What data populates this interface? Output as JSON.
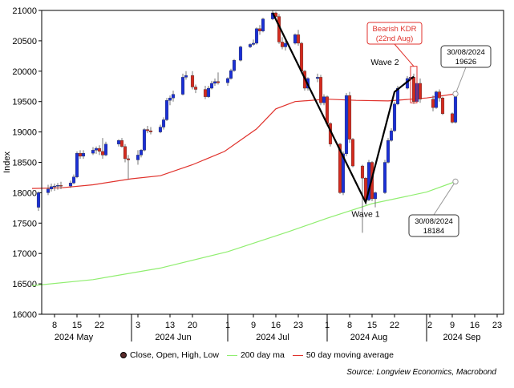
{
  "chart_data": {
    "type": "candlestick",
    "ylabel": "Index",
    "ylim": [
      16000,
      21000
    ],
    "yticks": [
      16000,
      16500,
      17000,
      17500,
      18000,
      18500,
      19000,
      19500,
      20000,
      20500,
      21000
    ],
    "x_range": [
      "2024-05-04",
      "2024-09-25"
    ],
    "x_day_ticks": [
      {
        "date": "2024-05-08",
        "label": "8"
      },
      {
        "date": "2024-05-15",
        "label": "15"
      },
      {
        "date": "2024-05-22",
        "label": "22"
      },
      {
        "date": "2024-06-03",
        "label": "3"
      },
      {
        "date": "2024-06-13",
        "label": "13"
      },
      {
        "date": "2024-06-20",
        "label": "20"
      },
      {
        "date": "2024-07-01",
        "label": "1"
      },
      {
        "date": "2024-07-09",
        "label": "9"
      },
      {
        "date": "2024-07-16",
        "label": "16"
      },
      {
        "date": "2024-07-23",
        "label": "23"
      },
      {
        "date": "2024-08-01",
        "label": "1"
      },
      {
        "date": "2024-08-08",
        "label": "8"
      },
      {
        "date": "2024-08-15",
        "label": "15"
      },
      {
        "date": "2024-08-22",
        "label": "22"
      },
      {
        "date": "2024-09-02",
        "label": "2"
      },
      {
        "date": "2024-09-09",
        "label": "9"
      },
      {
        "date": "2024-09-16",
        "label": "16"
      },
      {
        "date": "2024-09-23",
        "label": "23"
      }
    ],
    "x_month_labels": [
      {
        "date": "2024-05-14",
        "label": "2024 May"
      },
      {
        "date": "2024-06-14",
        "label": "2024 Jun"
      },
      {
        "date": "2024-07-15",
        "label": "2024 Jul"
      },
      {
        "date": "2024-08-14",
        "label": "2024 Aug"
      },
      {
        "date": "2024-09-12",
        "label": "2024 Sep"
      }
    ],
    "month_boundaries": [
      "2024-06-01",
      "2024-07-01",
      "2024-08-01",
      "2024-09-01"
    ],
    "candles": [
      {
        "date": "2024-05-03",
        "open": 17760,
        "high": 18020,
        "low": 17700,
        "close": 18000
      },
      {
        "date": "2024-05-06",
        "open": 18000,
        "high": 18130,
        "low": 17960,
        "close": 18060
      },
      {
        "date": "2024-05-07",
        "open": 18060,
        "high": 18150,
        "low": 18020,
        "close": 18100
      },
      {
        "date": "2024-05-08",
        "open": 18100,
        "high": 18150,
        "low": 18030,
        "close": 18110
      },
      {
        "date": "2024-05-09",
        "open": 18110,
        "high": 18160,
        "low": 18050,
        "close": 18120
      },
      {
        "date": "2024-05-10",
        "open": 18120,
        "high": 18180,
        "low": 18060,
        "close": 18110
      },
      {
        "date": "2024-05-13",
        "open": 18110,
        "high": 18200,
        "low": 18080,
        "close": 18160
      },
      {
        "date": "2024-05-14",
        "open": 18160,
        "high": 18300,
        "low": 18140,
        "close": 18260
      },
      {
        "date": "2024-05-15",
        "open": 18260,
        "high": 18680,
        "low": 18240,
        "close": 18650
      },
      {
        "date": "2024-05-16",
        "open": 18650,
        "high": 18700,
        "low": 18560,
        "close": 18600
      },
      {
        "date": "2024-05-17",
        "open": 18600,
        "high": 18700,
        "low": 18560,
        "close": 18650
      },
      {
        "date": "2024-05-20",
        "open": 18650,
        "high": 18750,
        "low": 18620,
        "close": 18700
      },
      {
        "date": "2024-05-21",
        "open": 18700,
        "high": 18760,
        "low": 18640,
        "close": 18730
      },
      {
        "date": "2024-05-22",
        "open": 18730,
        "high": 18780,
        "low": 18620,
        "close": 18680
      },
      {
        "date": "2024-05-23",
        "open": 18680,
        "high": 18900,
        "low": 18560,
        "close": 18620
      },
      {
        "date": "2024-05-24",
        "open": 18620,
        "high": 18840,
        "low": 18600,
        "close": 18800
      },
      {
        "date": "2024-05-28",
        "open": 18800,
        "high": 18880,
        "low": 18760,
        "close": 18860
      },
      {
        "date": "2024-05-29",
        "open": 18860,
        "high": 18900,
        "low": 18740,
        "close": 18760
      },
      {
        "date": "2024-05-30",
        "open": 18760,
        "high": 18800,
        "low": 18500,
        "close": 18560
      },
      {
        "date": "2024-05-31",
        "open": 18560,
        "high": 18620,
        "low": 18220,
        "close": 18540
      },
      {
        "date": "2024-06-03",
        "open": 18540,
        "high": 18700,
        "low": 18460,
        "close": 18620
      },
      {
        "date": "2024-06-04",
        "open": 18620,
        "high": 18720,
        "low": 18580,
        "close": 18700
      },
      {
        "date": "2024-06-05",
        "open": 18700,
        "high": 19060,
        "low": 18680,
        "close": 19040
      },
      {
        "date": "2024-06-06",
        "open": 19040,
        "high": 19100,
        "low": 18980,
        "close": 19020
      },
      {
        "date": "2024-06-07",
        "open": 19020,
        "high": 19080,
        "low": 18960,
        "close": 19000
      },
      {
        "date": "2024-06-10",
        "open": 19000,
        "high": 19120,
        "low": 18980,
        "close": 19080
      },
      {
        "date": "2024-06-11",
        "open": 19080,
        "high": 19240,
        "low": 19040,
        "close": 19200
      },
      {
        "date": "2024-06-12",
        "open": 19200,
        "high": 19560,
        "low": 19180,
        "close": 19520
      },
      {
        "date": "2024-06-13",
        "open": 19520,
        "high": 19600,
        "low": 19440,
        "close": 19560
      },
      {
        "date": "2024-06-14",
        "open": 19560,
        "high": 19680,
        "low": 19500,
        "close": 19620
      },
      {
        "date": "2024-06-17",
        "open": 19620,
        "high": 19960,
        "low": 19600,
        "close": 19900
      },
      {
        "date": "2024-06-18",
        "open": 19900,
        "high": 20000,
        "low": 19860,
        "close": 19930
      },
      {
        "date": "2024-06-20",
        "open": 19930,
        "high": 20000,
        "low": 19700,
        "close": 19740
      },
      {
        "date": "2024-06-21",
        "open": 19740,
        "high": 19780,
        "low": 19640,
        "close": 19700
      },
      {
        "date": "2024-06-24",
        "open": 19700,
        "high": 19760,
        "low": 19540,
        "close": 19580
      },
      {
        "date": "2024-06-25",
        "open": 19580,
        "high": 19760,
        "low": 19560,
        "close": 19720
      },
      {
        "date": "2024-06-26",
        "open": 19720,
        "high": 19840,
        "low": 19700,
        "close": 19800
      },
      {
        "date": "2024-06-27",
        "open": 19800,
        "high": 19880,
        "low": 19760,
        "close": 19830
      },
      {
        "date": "2024-06-28",
        "open": 19830,
        "high": 19980,
        "low": 19780,
        "close": 19810
      },
      {
        "date": "2024-07-01",
        "open": 19810,
        "high": 19900,
        "low": 19760,
        "close": 19880
      },
      {
        "date": "2024-07-02",
        "open": 19880,
        "high": 20040,
        "low": 19860,
        "close": 20010
      },
      {
        "date": "2024-07-03",
        "open": 20010,
        "high": 20200,
        "low": 19990,
        "close": 20180
      },
      {
        "date": "2024-07-05",
        "open": 20180,
        "high": 20420,
        "low": 20160,
        "close": 20400
      },
      {
        "date": "2024-07-08",
        "open": 20400,
        "high": 20460,
        "low": 20380,
        "close": 20440
      },
      {
        "date": "2024-07-09",
        "open": 20440,
        "high": 20520,
        "low": 20420,
        "close": 20460
      },
      {
        "date": "2024-07-10",
        "open": 20460,
        "high": 20720,
        "low": 20440,
        "close": 20700
      },
      {
        "date": "2024-07-11",
        "open": 20700,
        "high": 20760,
        "low": 20600,
        "close": 20660
      },
      {
        "date": "2024-07-12",
        "open": 20660,
        "high": 20880,
        "low": 20640,
        "close": 20860
      },
      {
        "date": "2024-07-15",
        "open": 20860,
        "high": 21000,
        "low": 20840,
        "close": 20960
      },
      {
        "date": "2024-07-16",
        "open": 20960,
        "high": 20980,
        "low": 20880,
        "close": 20900
      },
      {
        "date": "2024-07-17",
        "open": 20900,
        "high": 20940,
        "low": 20450,
        "close": 20480
      },
      {
        "date": "2024-07-18",
        "open": 20480,
        "high": 20560,
        "low": 20360,
        "close": 20400
      },
      {
        "date": "2024-07-19",
        "open": 20400,
        "high": 20500,
        "low": 20340,
        "close": 20460
      },
      {
        "date": "2024-07-22",
        "open": 20460,
        "high": 20620,
        "low": 20440,
        "close": 20600
      },
      {
        "date": "2024-07-23",
        "open": 20600,
        "high": 20680,
        "low": 20420,
        "close": 20460
      },
      {
        "date": "2024-07-24",
        "open": 20460,
        "high": 20480,
        "low": 19960,
        "close": 20000
      },
      {
        "date": "2024-07-25",
        "open": 20000,
        "high": 20020,
        "low": 19680,
        "close": 19720
      },
      {
        "date": "2024-07-26",
        "open": 19720,
        "high": 19900,
        "low": 19680,
        "close": 19880
      },
      {
        "date": "2024-07-29",
        "open": 19880,
        "high": 19960,
        "low": 19820,
        "close": 19900
      },
      {
        "date": "2024-07-30",
        "open": 19900,
        "high": 19940,
        "low": 19440,
        "close": 19480
      },
      {
        "date": "2024-07-31",
        "open": 19480,
        "high": 19620,
        "low": 19440,
        "close": 19580
      },
      {
        "date": "2024-08-01",
        "open": 19580,
        "high": 19600,
        "low": 19100,
        "close": 19140
      },
      {
        "date": "2024-08-02",
        "open": 19140,
        "high": 19160,
        "low": 18760,
        "close": 18800
      },
      {
        "date": "2024-08-05",
        "open": 18800,
        "high": 18820,
        "low": 17980,
        "close": 18000
      },
      {
        "date": "2024-08-06",
        "open": 18000,
        "high": 18680,
        "low": 17960,
        "close": 18640
      },
      {
        "date": "2024-08-07",
        "open": 18640,
        "high": 19640,
        "low": 18600,
        "close": 19600
      },
      {
        "date": "2024-08-08",
        "open": 19600,
        "high": 19660,
        "low": 18820,
        "close": 18880
      },
      {
        "date": "2024-08-09",
        "open": 18880,
        "high": 18900,
        "low": 18420,
        "close": 18440
      },
      {
        "date": "2024-08-12",
        "open": 18440,
        "high": 18460,
        "low": 17340,
        "close": 18240
      },
      {
        "date": "2024-08-13",
        "open": 18240,
        "high": 18260,
        "low": 17840,
        "close": 17880
      },
      {
        "date": "2024-08-14",
        "open": 17880,
        "high": 18540,
        "low": 17860,
        "close": 18500
      },
      {
        "date": "2024-08-15",
        "open": 18500,
        "high": 18520,
        "low": 17860,
        "close": 17900
      },
      {
        "date": "2024-08-16",
        "open": 17900,
        "high": 18020,
        "low": 17760,
        "close": 18000
      },
      {
        "date": "2024-08-19",
        "open": 18000,
        "high": 18540,
        "low": 17980,
        "close": 18500
      },
      {
        "date": "2024-08-20",
        "open": 18500,
        "high": 18900,
        "low": 18480,
        "close": 18860
      },
      {
        "date": "2024-08-21",
        "open": 18860,
        "high": 19060,
        "low": 18840,
        "close": 19020
      },
      {
        "date": "2024-08-22",
        "open": 19020,
        "high": 19500,
        "low": 19000,
        "close": 19460
      },
      {
        "date": "2024-08-23",
        "open": 19460,
        "high": 19760,
        "low": 19440,
        "close": 19720
      },
      {
        "date": "2024-08-26",
        "open": 19720,
        "high": 19920,
        "low": 19700,
        "close": 19880
      },
      {
        "date": "2024-08-27",
        "open": 19880,
        "high": 19940,
        "low": 19820,
        "close": 19900
      },
      {
        "date": "2024-08-28",
        "open": 19900,
        "high": 19960,
        "low": 19460,
        "close": 19500
      },
      {
        "date": "2024-08-29",
        "open": 19500,
        "high": 19840,
        "low": 19480,
        "close": 19800
      },
      {
        "date": "2024-08-30",
        "open": 19800,
        "high": 19880,
        "low": 19480,
        "close": 19540
      },
      {
        "date": "2024-09-03",
        "open": 19540,
        "high": 19600,
        "low": 19340,
        "close": 19400
      },
      {
        "date": "2024-09-04",
        "open": 19400,
        "high": 19680,
        "low": 19380,
        "close": 19660
      },
      {
        "date": "2024-09-05",
        "open": 19660,
        "high": 19700,
        "low": 19500,
        "close": 19560
      },
      {
        "date": "2024-09-06",
        "open": 19560,
        "high": 19580,
        "low": 19280,
        "close": 19300
      },
      {
        "date": "2024-09-09",
        "open": 19300,
        "high": 19320,
        "low": 19140,
        "close": 19160
      },
      {
        "date": "2024-09-10",
        "open": 19160,
        "high": 19600,
        "low": 19140,
        "close": 19580
      }
    ],
    "series": [
      {
        "name": "200 day ma",
        "color": "#90ee70",
        "points": [
          [
            "2024-05-01",
            16470
          ],
          [
            "2024-05-20",
            16570
          ],
          [
            "2024-06-10",
            16760
          ],
          [
            "2024-07-01",
            17030
          ],
          [
            "2024-07-20",
            17360
          ],
          [
            "2024-08-01",
            17580
          ],
          [
            "2024-08-15",
            17820
          ],
          [
            "2024-09-01",
            18010
          ],
          [
            "2024-09-10",
            18184
          ]
        ]
      },
      {
        "name": "50 day moving average",
        "color": "#e0322c",
        "points": [
          [
            "2024-05-01",
            18070
          ],
          [
            "2024-05-10",
            18080
          ],
          [
            "2024-05-20",
            18130
          ],
          [
            "2024-06-01",
            18230
          ],
          [
            "2024-06-10",
            18280
          ],
          [
            "2024-06-20",
            18460
          ],
          [
            "2024-06-30",
            18680
          ],
          [
            "2024-07-10",
            19050
          ],
          [
            "2024-07-16",
            19380
          ],
          [
            "2024-07-22",
            19500
          ],
          [
            "2024-08-01",
            19540
          ],
          [
            "2024-08-10",
            19520
          ],
          [
            "2024-08-20",
            19510
          ],
          [
            "2024-09-01",
            19560
          ],
          [
            "2024-09-10",
            19626
          ]
        ]
      }
    ],
    "candle_legend_label": "Close, Open, High, Low",
    "up_color": "#1a2fd6",
    "down_color": "#d42a1e",
    "annotations": {
      "wave_lines": [
        [
          "2024-07-15",
          20960
        ],
        [
          "2024-08-13",
          17840
        ],
        [
          "2024-08-22",
          19660
        ],
        [
          "2024-08-28",
          19910
        ]
      ],
      "wave1_label": {
        "text": "Wave 1",
        "date": "2024-08-13",
        "value": 17600
      },
      "wave2_label": {
        "text": "Wave 2",
        "date": "2024-08-19",
        "value": 20100
      },
      "kdr_label": {
        "line1": "Bearish KDR",
        "line2": "(22nd Aug)",
        "color": "#e0322c",
        "date_from": "2024-08-27",
        "date_to": "2024-08-29",
        "value_top": 20080,
        "value_bottom": 19480
      },
      "callout_50": {
        "line1": "30/08/2024",
        "line2": "19626",
        "date": "2024-09-10",
        "value": 19626
      },
      "callout_200": {
        "line1": "30/08/2024",
        "line2": "18184",
        "date": "2024-09-10",
        "value": 18184
      }
    },
    "source_text": "Source: Longview Economics, Macrobond"
  }
}
